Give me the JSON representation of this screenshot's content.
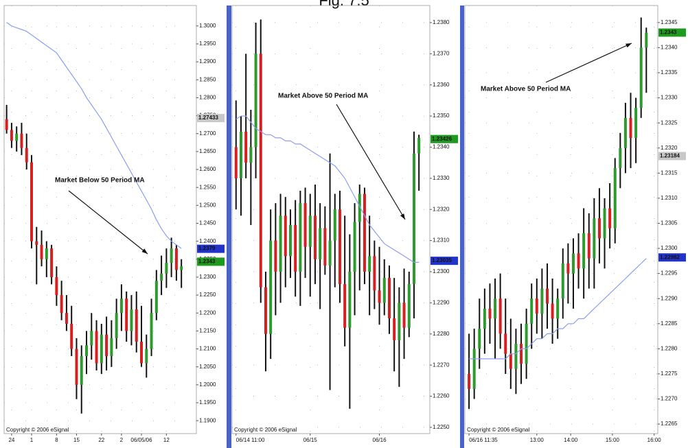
{
  "title": "Fig. 7.5",
  "chart_data": [
    {
      "type": "candlestick",
      "annotation": "Market Below 50 Period MA",
      "copyright": "Copyright © 2006 eSignal",
      "up_color": "#2e9a2e",
      "down_color": "#d42020",
      "wick_color": "#111111",
      "ma_color": "#8c9cf0",
      "grid": true,
      "open": [
        1.274,
        1.271,
        1.268,
        1.27,
        1.266,
        1.262,
        1.24,
        1.239,
        1.235,
        1.238,
        1.23,
        1.225,
        1.22,
        1.217,
        1.21,
        1.2,
        1.208,
        1.211,
        1.215,
        1.206,
        1.214,
        1.208,
        1.213,
        1.22,
        1.224,
        1.215,
        1.221,
        1.212,
        1.206,
        1.21,
        1.22,
        1.229,
        1.231,
        1.234,
        1.238,
        1.232
      ],
      "high": [
        1.278,
        1.273,
        1.272,
        1.273,
        1.27,
        1.264,
        1.244,
        1.243,
        1.24,
        1.239,
        1.233,
        1.229,
        1.225,
        1.222,
        1.213,
        1.211,
        1.215,
        1.22,
        1.218,
        1.217,
        1.219,
        1.218,
        1.224,
        1.228,
        1.226,
        1.225,
        1.226,
        1.222,
        1.214,
        1.224,
        1.232,
        1.236,
        1.238,
        1.241,
        1.239,
        1.235
      ],
      "low": [
        1.27,
        1.266,
        1.265,
        1.264,
        1.26,
        1.238,
        1.228,
        1.233,
        1.23,
        1.228,
        1.222,
        1.218,
        1.215,
        1.208,
        1.196,
        1.192,
        1.203,
        1.207,
        1.204,
        1.203,
        1.204,
        1.205,
        1.21,
        1.215,
        1.212,
        1.211,
        1.209,
        1.205,
        1.202,
        1.208,
        1.218,
        1.225,
        1.227,
        1.23,
        1.229,
        1.227
      ],
      "close": [
        1.271,
        1.268,
        1.27,
        1.266,
        1.262,
        1.24,
        1.239,
        1.235,
        1.238,
        1.23,
        1.225,
        1.22,
        1.217,
        1.21,
        1.2,
        1.208,
        1.211,
        1.215,
        1.206,
        1.214,
        1.208,
        1.213,
        1.22,
        1.224,
        1.215,
        1.221,
        1.212,
        1.206,
        1.21,
        1.22,
        1.229,
        1.231,
        1.234,
        1.238,
        1.232,
        1.233
      ],
      "ma_values": [
        1.301,
        1.3,
        1.2995,
        1.299,
        1.2985,
        1.2975,
        1.2965,
        1.2955,
        1.2945,
        1.2935,
        1.2925,
        1.2905,
        1.2885,
        1.2865,
        1.2845,
        1.2825,
        1.28,
        1.278,
        1.276,
        1.274,
        1.2715,
        1.269,
        1.2665,
        1.264,
        1.2615,
        1.259,
        1.2565,
        1.254,
        1.2515,
        1.249,
        1.246,
        1.2435,
        1.2415,
        1.24,
        1.239,
        1.238
      ],
      "xlim": [
        -0.5,
        38
      ],
      "xticks": [
        {
          "value": 1,
          "label": "24"
        },
        {
          "value": 5,
          "label": "1"
        },
        {
          "value": 10,
          "label": "8"
        },
        {
          "value": 14,
          "label": "15"
        },
        {
          "value": 19,
          "label": "22"
        },
        {
          "value": 23,
          "label": "2"
        },
        {
          "value": 27,
          "label": "06/05/06"
        },
        {
          "value": 32,
          "label": "12"
        }
      ],
      "ylim": [
        1.1864,
        1.3057
      ],
      "yticks": [
        {
          "value": 1.19,
          "label": "1.1900"
        },
        {
          "value": 1.195,
          "label": "1.1950"
        },
        {
          "value": 1.2,
          "label": "1.2000"
        },
        {
          "value": 1.205,
          "label": "1.2050"
        },
        {
          "value": 1.21,
          "label": "1.2100"
        },
        {
          "value": 1.215,
          "label": "1.2150"
        },
        {
          "value": 1.22,
          "label": "1.2200"
        },
        {
          "value": 1.225,
          "label": "1.2250"
        },
        {
          "value": 1.23,
          "label": "1.2300"
        },
        {
          "value": 1.235,
          "label": "1.2350"
        },
        {
          "value": 1.24,
          "label": "1.2400"
        },
        {
          "value": 1.245,
          "label": "1.2450"
        },
        {
          "value": 1.25,
          "label": "1.2500"
        },
        {
          "value": 1.255,
          "label": "1.2550"
        },
        {
          "value": 1.26,
          "label": "1.2600"
        },
        {
          "value": 1.265,
          "label": "1.2650"
        },
        {
          "value": 1.27,
          "label": "1.2700"
        },
        {
          "value": 1.275,
          "label": "1.2750"
        },
        {
          "value": 1.28,
          "label": "1.2800"
        },
        {
          "value": 1.285,
          "label": "1.2850"
        },
        {
          "value": 1.29,
          "label": "1.2900"
        },
        {
          "value": 1.295,
          "label": "1.2950"
        },
        {
          "value": 1.3,
          "label": "1.3000"
        }
      ],
      "price_tags": [
        {
          "value": 1.27433,
          "color": "#c8c8c8"
        },
        {
          "value": 1.2379,
          "color": "#2233cc"
        },
        {
          "value": 1.2343,
          "color": "#1e9a1e"
        }
      ]
    },
    {
      "type": "candlestick",
      "annotation": "Market Above 50 Period MA",
      "copyright": "Copyright © 2006 eSignal",
      "up_color": "#2e9a2e",
      "down_color": "#d42020",
      "wick_color": "#111111",
      "ma_color": "#8c9cf0",
      "grid": true,
      "open": [
        1.234,
        1.233,
        1.2345,
        1.2335,
        1.234,
        1.237,
        1.2295,
        1.228,
        1.231,
        1.23,
        1.2318,
        1.2305,
        1.2315,
        1.23,
        1.2322,
        1.2308,
        1.2318,
        1.2304,
        1.2314,
        1.2302,
        1.231,
        1.232,
        1.2296,
        1.2282,
        1.23,
        1.2316,
        1.2325,
        1.23,
        1.2305,
        1.2294,
        1.229,
        1.2298,
        1.2285,
        1.2278,
        1.229,
        1.2282,
        1.2296,
        1.2338
      ],
      "high": [
        1.2355,
        1.235,
        1.237,
        1.2352,
        1.238,
        1.2381,
        1.23,
        1.232,
        1.2322,
        1.2325,
        1.2324,
        1.232,
        1.2323,
        1.2326,
        1.2327,
        1.2325,
        1.2328,
        1.2322,
        1.2321,
        1.2338,
        1.2325,
        1.2326,
        1.2318,
        1.2312,
        1.2322,
        1.2328,
        1.2327,
        1.2318,
        1.231,
        1.2308,
        1.2304,
        1.2302,
        1.2298,
        1.2295,
        1.2301,
        1.23,
        1.2345,
        1.2344
      ],
      "low": [
        1.232,
        1.2318,
        1.233,
        1.2315,
        1.233,
        1.229,
        1.2268,
        1.2272,
        1.2286,
        1.229,
        1.2295,
        1.2298,
        1.2292,
        1.2289,
        1.2298,
        1.2292,
        1.2296,
        1.2288,
        1.2299,
        1.2262,
        1.2295,
        1.229,
        1.2276,
        1.2256,
        1.2286,
        1.2294,
        1.2296,
        1.2286,
        1.2288,
        1.2283,
        1.2286,
        1.228,
        1.2268,
        1.2263,
        1.2272,
        1.2279,
        1.2285,
        1.2326
      ],
      "close": [
        1.233,
        1.2345,
        1.2335,
        1.234,
        1.237,
        1.2295,
        1.228,
        1.231,
        1.23,
        1.2318,
        1.2305,
        1.2315,
        1.23,
        1.2322,
        1.2308,
        1.2318,
        1.2304,
        1.2314,
        1.2302,
        1.231,
        1.232,
        1.2296,
        1.2282,
        1.23,
        1.2316,
        1.2325,
        1.23,
        1.2305,
        1.2294,
        1.229,
        1.2298,
        1.2285,
        1.2278,
        1.229,
        1.2282,
        1.2296,
        1.2338,
        1.2343
      ],
      "ma_values": [
        1.2349,
        1.235,
        1.235,
        1.2348,
        1.2346,
        1.2345,
        1.2344,
        1.2344,
        1.2343,
        1.2343,
        1.2342,
        1.2342,
        1.2341,
        1.2341,
        1.234,
        1.2339,
        1.2338,
        1.2337,
        1.2336,
        1.2335,
        1.2334,
        1.2332,
        1.233,
        1.2327,
        1.2324,
        1.2321,
        1.2318,
        1.2315,
        1.2313,
        1.2311,
        1.2309,
        1.2308,
        1.2307,
        1.2306,
        1.2305,
        1.2304,
        1.2303,
        1.2303
      ],
      "xlim": [
        -0.8,
        39.2
      ],
      "xticks": [
        {
          "value": 0,
          "label": "06/14 11:00"
        },
        {
          "value": 15,
          "label": "06/15"
        },
        {
          "value": 29,
          "label": "06/16"
        }
      ],
      "ylim": [
        1.2248,
        1.23855
      ],
      "yticks": [
        {
          "value": 1.225,
          "label": "1.2250"
        },
        {
          "value": 1.226,
          "label": "1.2260"
        },
        {
          "value": 1.227,
          "label": "1.2270"
        },
        {
          "value": 1.228,
          "label": "1.2280"
        },
        {
          "value": 1.229,
          "label": "1.2290"
        },
        {
          "value": 1.23,
          "label": "1.2300"
        },
        {
          "value": 1.231,
          "label": "1.2310"
        },
        {
          "value": 1.232,
          "label": "1.2320"
        },
        {
          "value": 1.233,
          "label": "1.2330"
        },
        {
          "value": 1.234,
          "label": "1.2340"
        },
        {
          "value": 1.235,
          "label": "1.2350"
        },
        {
          "value": 1.236,
          "label": "1.2360"
        },
        {
          "value": 1.237,
          "label": "1.2370"
        },
        {
          "value": 1.238,
          "label": "1.2380"
        }
      ],
      "price_tags": [
        {
          "value": 1.23426,
          "color": "#1e9a1e"
        },
        {
          "value": 1.23035,
          "color": "#2233cc"
        }
      ]
    },
    {
      "type": "candlestick",
      "annotation": "Market Above 50 Period MA",
      "copyright": "Copyright © 2006 eSignal",
      "up_color": "#2e9a2e",
      "down_color": "#d42020",
      "wick_color": "#111111",
      "ma_color": "#8c9cf0",
      "grid": true,
      "open": [
        1.2275,
        1.2272,
        1.228,
        1.2284,
        1.2288,
        1.2286,
        1.229,
        1.2283,
        1.2279,
        1.2276,
        1.2281,
        1.2277,
        1.2285,
        1.229,
        1.2287,
        1.2292,
        1.2289,
        1.2286,
        1.229,
        1.2297,
        1.2295,
        1.2299,
        1.2296,
        1.2303,
        1.2298,
        1.2306,
        1.2302,
        1.2308,
        1.2304,
        1.2316,
        1.232,
        1.2326,
        1.2322,
        1.2328,
        1.234
      ],
      "high": [
        1.2283,
        1.2284,
        1.229,
        1.2292,
        1.2293,
        1.2294,
        1.2295,
        1.229,
        1.2286,
        1.2284,
        1.2285,
        1.2288,
        1.2293,
        1.2294,
        1.2296,
        1.2297,
        1.2294,
        1.2292,
        1.23,
        1.2301,
        1.2302,
        1.2303,
        1.2308,
        1.2307,
        1.231,
        1.2312,
        1.231,
        1.2313,
        1.2318,
        1.2323,
        1.2329,
        1.2331,
        1.233,
        1.2346,
        1.2344
      ],
      "low": [
        1.2268,
        1.227,
        1.2276,
        1.2279,
        1.2281,
        1.2278,
        1.228,
        1.2275,
        1.2272,
        1.2271,
        1.2273,
        1.2274,
        1.228,
        1.2283,
        1.2282,
        1.2284,
        1.2281,
        1.2282,
        1.2286,
        1.2289,
        1.2288,
        1.2292,
        1.229,
        1.2292,
        1.2292,
        1.2297,
        1.2296,
        1.23,
        1.2301,
        1.2312,
        1.2315,
        1.2316,
        1.2317,
        1.2326,
        1.2331
      ],
      "close": [
        1.2272,
        1.228,
        1.2284,
        1.2288,
        1.2286,
        1.229,
        1.2283,
        1.2279,
        1.2276,
        1.2281,
        1.2277,
        1.2285,
        1.229,
        1.2287,
        1.2292,
        1.2289,
        1.2286,
        1.229,
        1.2297,
        1.2295,
        1.2299,
        1.2296,
        1.2303,
        1.2298,
        1.2306,
        1.2302,
        1.2308,
        1.2304,
        1.2316,
        1.232,
        1.2326,
        1.2322,
        1.2328,
        1.234,
        1.2343
      ],
      "ma_values": [
        1.2278,
        1.2278,
        1.2278,
        1.2278,
        1.2278,
        1.2278,
        1.2278,
        1.2278,
        1.2279,
        1.2279,
        1.228,
        1.228,
        1.2281,
        1.2282,
        1.2282,
        1.2283,
        1.2283,
        1.2284,
        1.2284,
        1.2285,
        1.2285,
        1.2286,
        1.2286,
        1.2287,
        1.2288,
        1.2289,
        1.229,
        1.2291,
        1.2292,
        1.2293,
        1.2294,
        1.2295,
        1.2296,
        1.2297,
        1.2298
      ],
      "xlim": [
        -0.8,
        36.2
      ],
      "xticks": [
        {
          "value": 0,
          "label": "06/16 11:35"
        },
        {
          "value": 13,
          "label": "13:00"
        },
        {
          "value": 19.5,
          "label": "14:00"
        },
        {
          "value": 27.5,
          "label": "15:00"
        },
        {
          "value": 35.5,
          "label": "16:00"
        }
      ],
      "ylim": [
        1.22631,
        1.23484
      ],
      "yticks": [
        1.2265,
        {
          "value": 1.227,
          "label": "1.2270"
        },
        1.2275,
        {
          "value": 1.228,
          "label": "1.2280"
        },
        1.2285,
        {
          "value": 1.229,
          "label": "1.2290"
        },
        1.2295,
        {
          "value": 1.23,
          "label": "1.2300"
        },
        1.2305,
        {
          "value": 1.231,
          "label": "1.2310"
        },
        1.2315,
        {
          "value": 1.232,
          "label": "1.2320"
        },
        1.2325,
        {
          "value": 1.233,
          "label": "1.2330"
        },
        1.2335,
        {
          "value": 1.234,
          "label": "1.2340"
        },
        1.2345
      ],
      "price_tags": [
        {
          "value": 1.2343,
          "color": "#1e9a1e"
        },
        {
          "value": 1.23184,
          "color": "#c8c8c8"
        },
        {
          "value": 1.22982,
          "color": "#2233cc"
        }
      ]
    }
  ]
}
